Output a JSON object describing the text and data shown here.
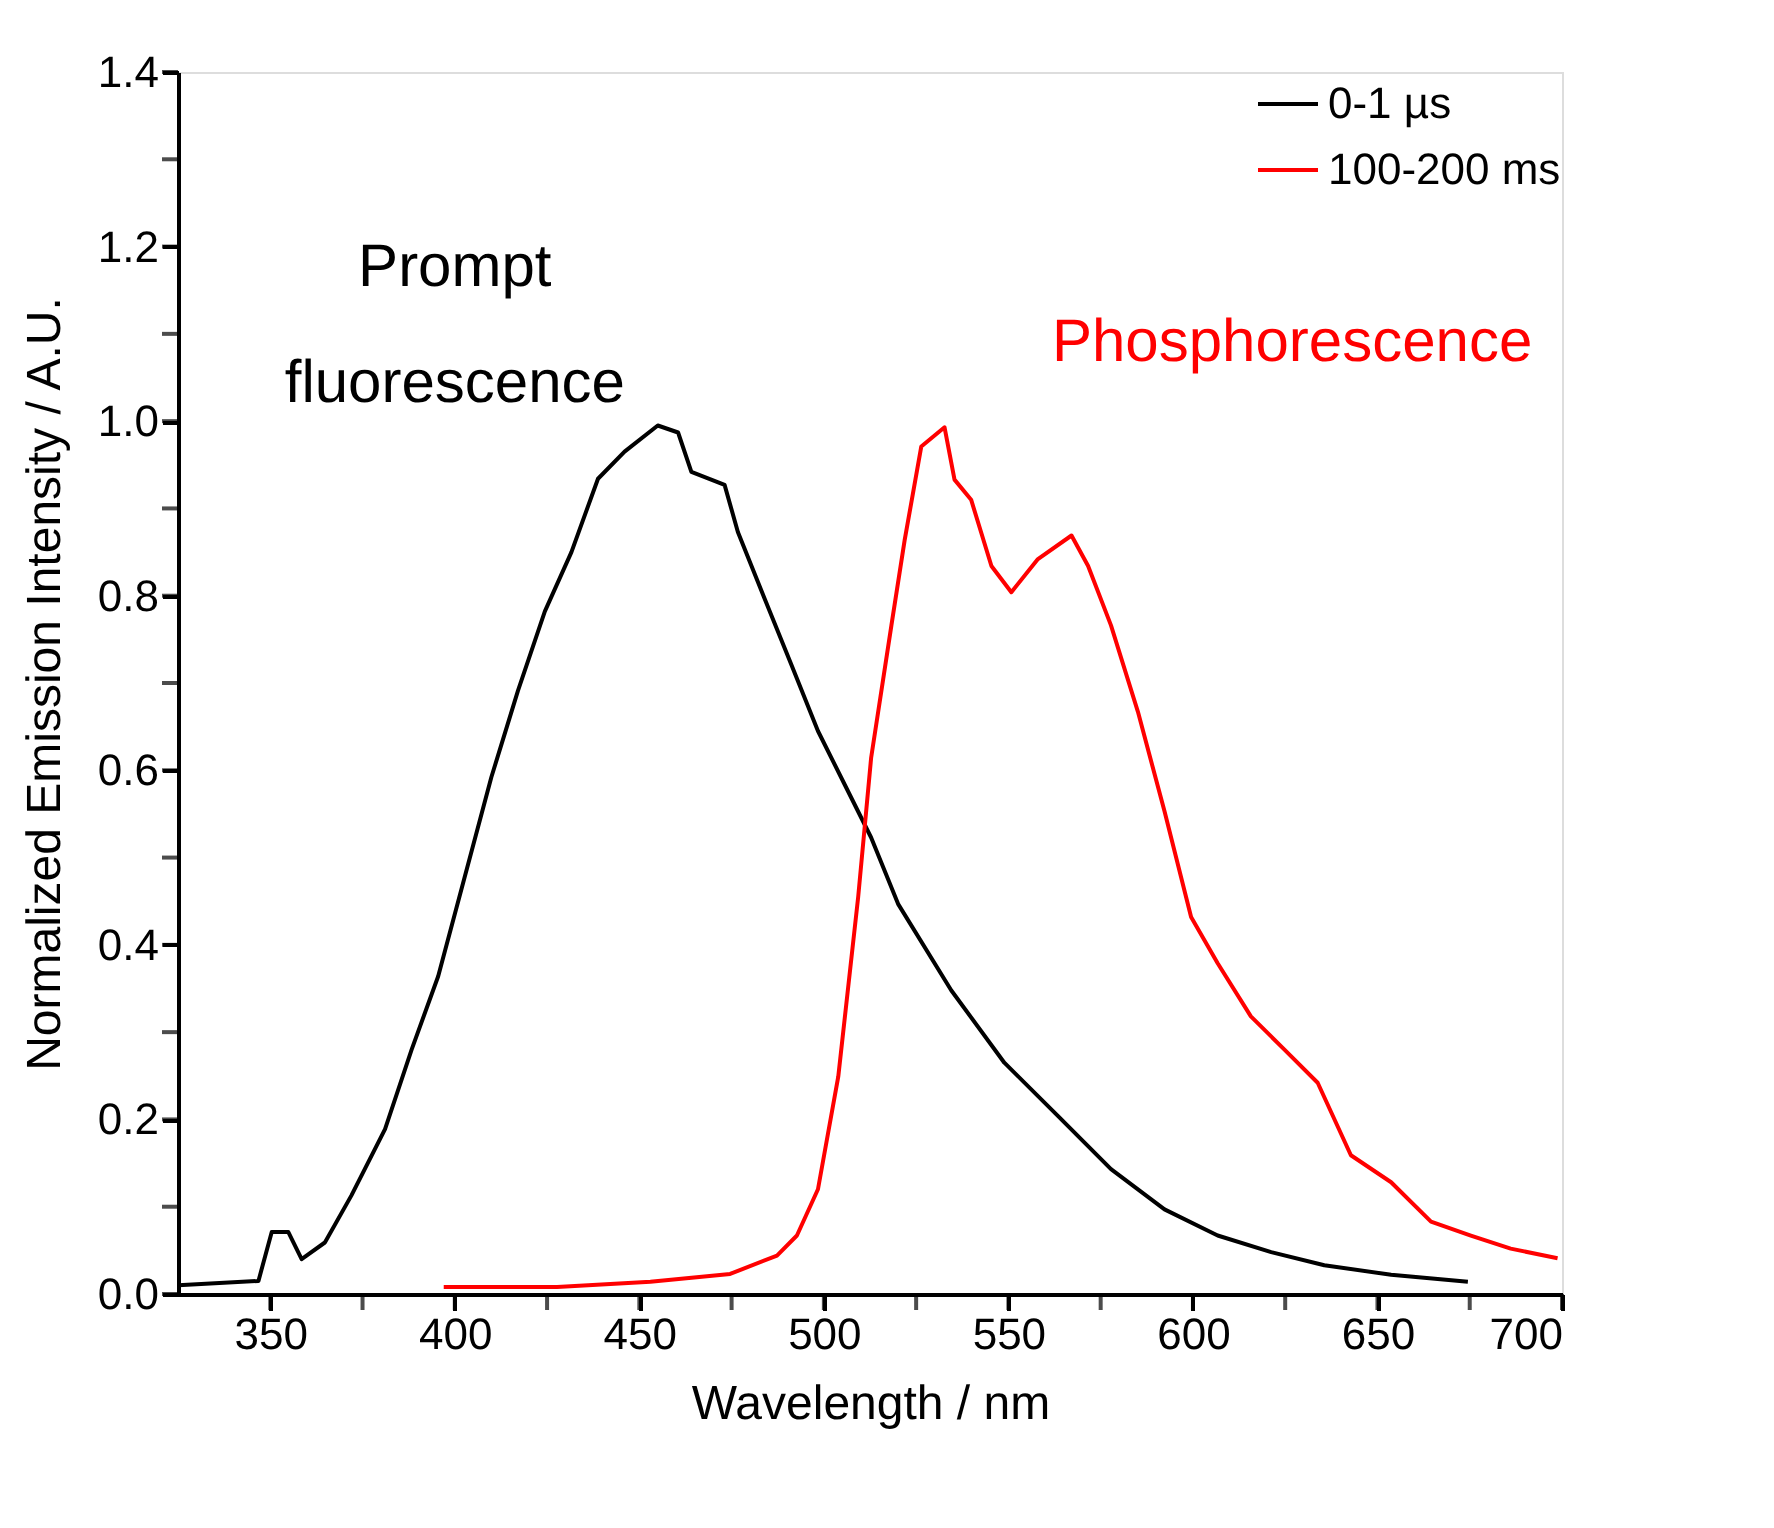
{
  "chart_data": {
    "type": "line",
    "xlabel": "Wavelength / nm",
    "ylabel": "Normalized Emission Intensity / A.U.",
    "xlim": [
      325,
      700
    ],
    "xticks": [
      350,
      400,
      450,
      500,
      550,
      600,
      650,
      700
    ],
    "ylim": [
      0,
      1.4
    ],
    "yticks": [
      {
        "value": 0,
        "label": "0.0"
      },
      0.2,
      0.4,
      0.6,
      0.8,
      {
        "value": 1,
        "label": "1.0"
      },
      1.2,
      1.4
    ],
    "grid": false,
    "legend": "top right",
    "marker": "none",
    "line_style": "solid",
    "annotations": [
      "Prompt fluorescence",
      "Phosphorescence"
    ],
    "series": [
      {
        "name": "0-1 µs",
        "color": "#000000",
        "x": [
          325.1,
          346.8,
          350.4,
          354.9,
          358.5,
          364.8,
          372.0,
          381.1,
          388.3,
          395.5,
          402.7,
          409.9,
          417.1,
          424.4,
          431.6,
          438.8,
          446.0,
          455.0,
          460.5,
          464.1,
          473.1,
          476.7,
          483.9,
          491.2,
          498.4,
          505.6,
          512.8,
          520.1,
          534.5,
          548.9,
          563.4,
          577.8,
          592.3,
          606.7,
          621.2,
          635.6,
          653.7,
          674.5
        ],
        "values": [
          0.01,
          0.015,
          0.071,
          0.071,
          0.04,
          0.059,
          0.113,
          0.189,
          0.28,
          0.364,
          0.478,
          0.592,
          0.691,
          0.782,
          0.85,
          0.934,
          0.965,
          0.995,
          0.987,
          0.942,
          0.927,
          0.873,
          0.797,
          0.721,
          0.645,
          0.584,
          0.523,
          0.447,
          0.348,
          0.265,
          0.204,
          0.143,
          0.097,
          0.067,
          0.048,
          0.033,
          0.022,
          0.014
        ]
      },
      {
        "name": "100-200 ms",
        "color": "#ff0000",
        "x": [
          397.0,
          427.7,
          453.0,
          474.6,
          487.3,
          492.7,
          498.4,
          503.9,
          509.3,
          512.8,
          518.3,
          521.9,
          526.4,
          532.7,
          535.4,
          539.9,
          545.4,
          550.8,
          558.0,
          567.1,
          571.6,
          577.8,
          585.1,
          592.3,
          599.5,
          606.7,
          615.7,
          624.8,
          633.8,
          642.8,
          653.7,
          664.5,
          675.3,
          686.1,
          698.8
        ],
        "values": [
          0.008,
          0.008,
          0.014,
          0.023,
          0.044,
          0.067,
          0.12,
          0.249,
          0.455,
          0.614,
          0.766,
          0.864,
          0.971,
          0.993,
          0.933,
          0.91,
          0.834,
          0.804,
          0.842,
          0.869,
          0.834,
          0.766,
          0.667,
          0.553,
          0.432,
          0.379,
          0.318,
          0.28,
          0.242,
          0.159,
          0.128,
          0.083,
          0.067,
          0.052,
          0.041
        ]
      }
    ]
  }
}
